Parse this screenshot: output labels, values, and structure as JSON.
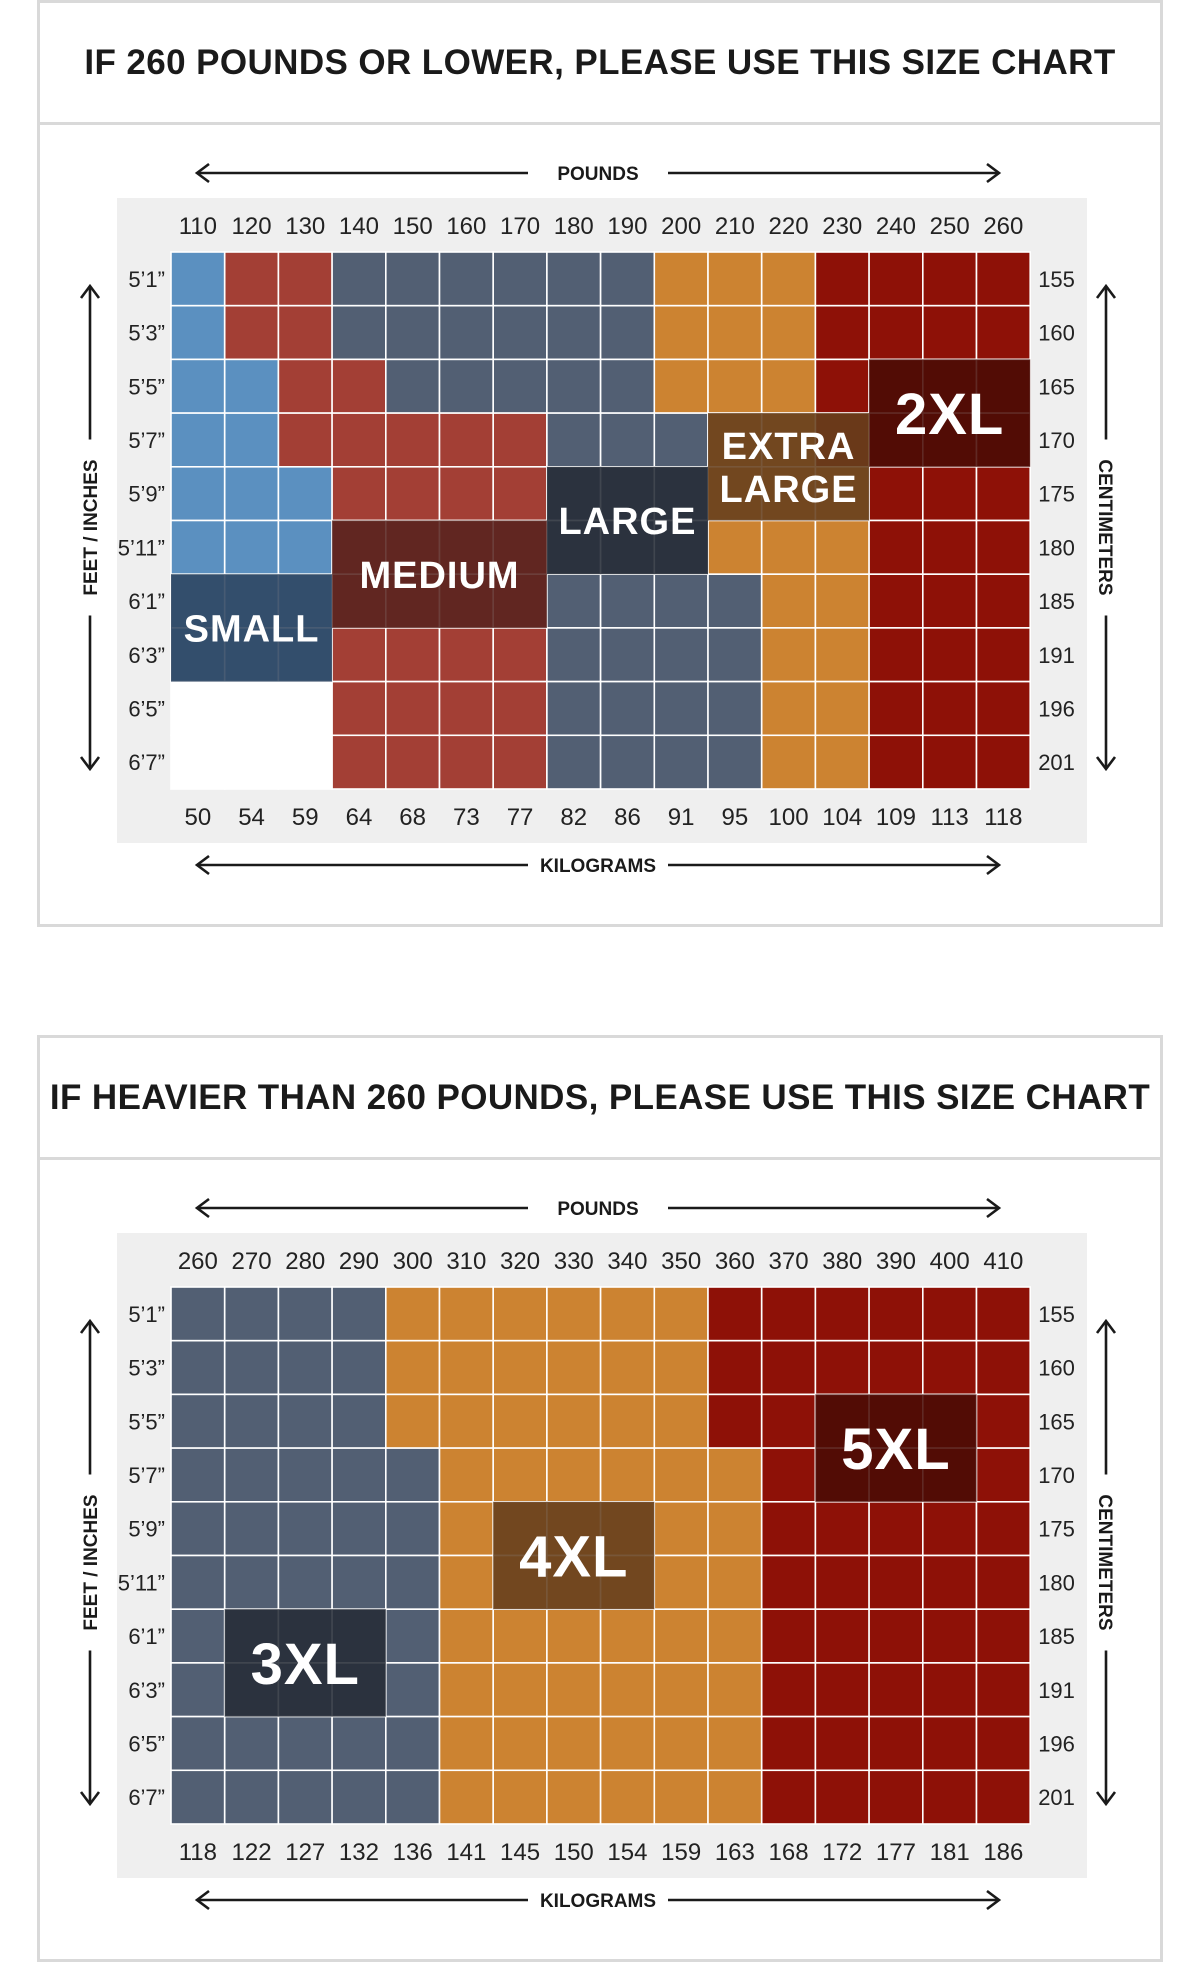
{
  "chart_data": [
    {
      "type": "heatmap",
      "title": "IF 260 POUNDS OR LOWER, PLEASE USE THIS SIZE CHART",
      "top_axis_label": "POUNDS",
      "bottom_axis_label": "KILOGRAMS",
      "left_axis_label": "FEET / INCHES",
      "right_axis_label": "CENTIMETERS",
      "pounds": [
        "110",
        "120",
        "130",
        "140",
        "150",
        "160",
        "170",
        "180",
        "190",
        "200",
        "210",
        "220",
        "230",
        "240",
        "250",
        "260"
      ],
      "kilograms": [
        "50",
        "54",
        "59",
        "64",
        "68",
        "73",
        "77",
        "82",
        "86",
        "91",
        "95",
        "100",
        "104",
        "109",
        "113",
        "118"
      ],
      "heights_ft_in": [
        "5’1”",
        "5’3”",
        "5’5”",
        "5’7”",
        "5’9”",
        "5’11”",
        "6’1”",
        "6’3”",
        "6’5”",
        "6’7”"
      ],
      "heights_cm": [
        "155",
        "160",
        "165",
        "170",
        "175",
        "180",
        "185",
        "191",
        "196",
        "201"
      ],
      "sizes": {
        "S": {
          "name": "SMALL",
          "color": "#5b90c0",
          "label_bg": "#2d4460"
        },
        "M": {
          "name": "MEDIUM",
          "color": "#a33f35",
          "label_bg": "#58231f"
        },
        "L": {
          "name": "LARGE",
          "color": "#525f73",
          "label_bg": "#252c37"
        },
        "XL": {
          "name": "EXTRA LARGE",
          "color": "#cc8331",
          "label_bg": "#653f1c"
        },
        "2XL": {
          "name": "2XL",
          "color": "#8e1107",
          "label_bg": "#4a0b06"
        }
      },
      "grid": [
        [
          "S",
          "M",
          "M",
          "L",
          "L",
          "L",
          "L",
          "L",
          "L",
          "XL",
          "XL",
          "XL",
          "2XL",
          "2XL",
          "2XL",
          "2XL"
        ],
        [
          "S",
          "M",
          "M",
          "L",
          "L",
          "L",
          "L",
          "L",
          "L",
          "XL",
          "XL",
          "XL",
          "2XL",
          "2XL",
          "2XL",
          "2XL"
        ],
        [
          "S",
          "S",
          "M",
          "M",
          "L",
          "L",
          "L",
          "L",
          "L",
          "XL",
          "XL",
          "XL",
          "2XL",
          "2XL",
          "2XL",
          "2XL"
        ],
        [
          "S",
          "S",
          "M",
          "M",
          "M",
          "M",
          "M",
          "L",
          "L",
          "L",
          "XL",
          "XL",
          "2XL",
          "2XL",
          "2XL",
          "2XL"
        ],
        [
          "S",
          "S",
          "S",
          "M",
          "M",
          "M",
          "M",
          "L",
          "L",
          "L",
          "XL",
          "XL",
          "XL",
          "2XL",
          "2XL",
          "2XL"
        ],
        [
          "S",
          "S",
          "S",
          "M",
          "M",
          "M",
          "M",
          "L",
          "L",
          "L",
          "XL",
          "XL",
          "XL",
          "2XL",
          "2XL",
          "2XL"
        ],
        [
          "S",
          "S",
          "S",
          "M",
          "M",
          "M",
          "M",
          "L",
          "L",
          "L",
          "L",
          "XL",
          "XL",
          "2XL",
          "2XL",
          "2XL"
        ],
        [
          "S",
          "S",
          "S",
          "M",
          "M",
          "M",
          "M",
          "L",
          "L",
          "L",
          "L",
          "XL",
          "XL",
          "2XL",
          "2XL",
          "2XL"
        ],
        [
          "",
          "",
          "",
          "M",
          "M",
          "M",
          "M",
          "L",
          "L",
          "L",
          "L",
          "XL",
          "XL",
          "2XL",
          "2XL",
          "2XL"
        ],
        [
          "",
          "",
          "",
          "M",
          "M",
          "M",
          "M",
          "L",
          "L",
          "L",
          "L",
          "XL",
          "XL",
          "2XL",
          "2XL",
          "2XL"
        ]
      ],
      "size_labels": [
        {
          "size": "S",
          "lines": [
            "SMALL"
          ],
          "cols": [
            0,
            2
          ],
          "rows": [
            6,
            7
          ]
        },
        {
          "size": "M",
          "lines": [
            "MEDIUM"
          ],
          "cols": [
            3,
            6
          ],
          "rows": [
            5,
            6
          ]
        },
        {
          "size": "L",
          "lines": [
            "LARGE"
          ],
          "cols": [
            7,
            9
          ],
          "rows": [
            4,
            5
          ]
        },
        {
          "size": "XL",
          "lines": [
            "EXTRA",
            "LARGE"
          ],
          "cols": [
            10,
            12
          ],
          "rows": [
            3,
            4
          ]
        },
        {
          "size": "2XL",
          "lines": [
            "2XL"
          ],
          "cols": [
            13,
            15
          ],
          "rows": [
            2,
            3
          ]
        }
      ]
    },
    {
      "type": "heatmap",
      "title": "IF HEAVIER THAN 260 POUNDS, PLEASE USE THIS SIZE CHART",
      "top_axis_label": "POUNDS",
      "bottom_axis_label": "KILOGRAMS",
      "left_axis_label": "FEET / INCHES",
      "right_axis_label": "CENTIMETERS",
      "pounds": [
        "260",
        "270",
        "280",
        "290",
        "300",
        "310",
        "320",
        "330",
        "340",
        "350",
        "360",
        "370",
        "380",
        "390",
        "400",
        "410"
      ],
      "kilograms": [
        "118",
        "122",
        "127",
        "132",
        "136",
        "141",
        "145",
        "150",
        "154",
        "159",
        "163",
        "168",
        "172",
        "177",
        "181",
        "186"
      ],
      "heights_ft_in": [
        "5’1”",
        "5’3”",
        "5’5”",
        "5’7”",
        "5’9”",
        "5’11”",
        "6’1”",
        "6’3”",
        "6’5”",
        "6’7”"
      ],
      "heights_cm": [
        "155",
        "160",
        "165",
        "170",
        "175",
        "180",
        "185",
        "191",
        "196",
        "201"
      ],
      "sizes": {
        "3XL": {
          "name": "3XL",
          "color": "#525f73",
          "label_bg": "#252c37"
        },
        "4XL": {
          "name": "4XL",
          "color": "#cc8331",
          "label_bg": "#653f1c"
        },
        "5XL": {
          "name": "5XL",
          "color": "#8e1107",
          "label_bg": "#4a0b06"
        }
      },
      "grid": [
        [
          "3XL",
          "3XL",
          "3XL",
          "3XL",
          "4XL",
          "4XL",
          "4XL",
          "4XL",
          "4XL",
          "4XL",
          "5XL",
          "5XL",
          "5XL",
          "5XL",
          "5XL",
          "5XL"
        ],
        [
          "3XL",
          "3XL",
          "3XL",
          "3XL",
          "4XL",
          "4XL",
          "4XL",
          "4XL",
          "4XL",
          "4XL",
          "5XL",
          "5XL",
          "5XL",
          "5XL",
          "5XL",
          "5XL"
        ],
        [
          "3XL",
          "3XL",
          "3XL",
          "3XL",
          "4XL",
          "4XL",
          "4XL",
          "4XL",
          "4XL",
          "4XL",
          "5XL",
          "5XL",
          "5XL",
          "5XL",
          "5XL",
          "5XL"
        ],
        [
          "3XL",
          "3XL",
          "3XL",
          "3XL",
          "3XL",
          "4XL",
          "4XL",
          "4XL",
          "4XL",
          "4XL",
          "4XL",
          "5XL",
          "5XL",
          "5XL",
          "5XL",
          "5XL"
        ],
        [
          "3XL",
          "3XL",
          "3XL",
          "3XL",
          "3XL",
          "4XL",
          "4XL",
          "4XL",
          "4XL",
          "4XL",
          "4XL",
          "5XL",
          "5XL",
          "5XL",
          "5XL",
          "5XL"
        ],
        [
          "3XL",
          "3XL",
          "3XL",
          "3XL",
          "3XL",
          "4XL",
          "4XL",
          "4XL",
          "4XL",
          "4XL",
          "4XL",
          "5XL",
          "5XL",
          "5XL",
          "5XL",
          "5XL"
        ],
        [
          "3XL",
          "3XL",
          "3XL",
          "3XL",
          "3XL",
          "4XL",
          "4XL",
          "4XL",
          "4XL",
          "4XL",
          "4XL",
          "5XL",
          "5XL",
          "5XL",
          "5XL",
          "5XL"
        ],
        [
          "3XL",
          "3XL",
          "3XL",
          "3XL",
          "3XL",
          "4XL",
          "4XL",
          "4XL",
          "4XL",
          "4XL",
          "4XL",
          "5XL",
          "5XL",
          "5XL",
          "5XL",
          "5XL"
        ],
        [
          "3XL",
          "3XL",
          "3XL",
          "3XL",
          "3XL",
          "4XL",
          "4XL",
          "4XL",
          "4XL",
          "4XL",
          "4XL",
          "5XL",
          "5XL",
          "5XL",
          "5XL",
          "5XL"
        ],
        [
          "3XL",
          "3XL",
          "3XL",
          "3XL",
          "3XL",
          "4XL",
          "4XL",
          "4XL",
          "4XL",
          "4XL",
          "4XL",
          "5XL",
          "5XL",
          "5XL",
          "5XL",
          "5XL"
        ]
      ],
      "size_labels": [
        {
          "size": "3XL",
          "lines": [
            "3XL"
          ],
          "cols": [
            1,
            3
          ],
          "rows": [
            6,
            7
          ]
        },
        {
          "size": "4XL",
          "lines": [
            "4XL"
          ],
          "cols": [
            6,
            8
          ],
          "rows": [
            4,
            5
          ]
        },
        {
          "size": "5XL",
          "lines": [
            "5XL"
          ],
          "cols": [
            12,
            14
          ],
          "rows": [
            2,
            3
          ]
        }
      ]
    }
  ]
}
